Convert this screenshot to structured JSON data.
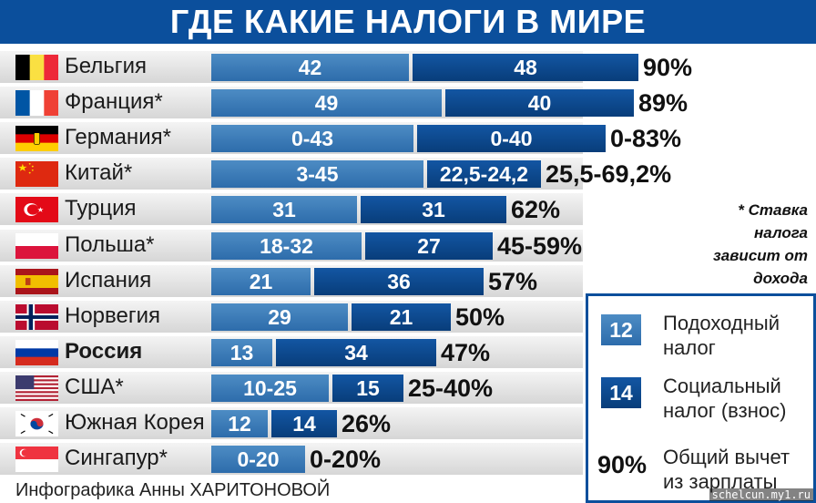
{
  "title": "ГДЕ КАКИЕ НАЛОГИ В МИРЕ",
  "colors": {
    "title_bg": "#0b4f9c",
    "income_tax": "#3a7ab8",
    "social_tax": "#0a4a91"
  },
  "chart_data": {
    "type": "bar",
    "stacked": true,
    "orientation": "horizontal",
    "title": "ГДЕ КАКИЕ НАЛОГИ В МИРЕ",
    "categories": [
      "Бельгия",
      "Франция*",
      "Германия*",
      "Китай*",
      "Турция",
      "Польша*",
      "Испания",
      "Норвегия",
      "Россия",
      "США*",
      "Южная Корея",
      "Сингапур*"
    ],
    "series": [
      {
        "name": "Подоходный налог",
        "color": "#3a7ab8",
        "labels": [
          "42",
          "49",
          "0-43",
          "3-45",
          "31",
          "18-32",
          "21",
          "29",
          "13",
          "10-25",
          "12",
          "0-20"
        ],
        "values": [
          42,
          49,
          43,
          45,
          31,
          32,
          21,
          29,
          13,
          25,
          12,
          20
        ]
      },
      {
        "name": "Социальный налог (взнос)",
        "color": "#0a4a91",
        "labels": [
          "48",
          "40",
          "0-40",
          "22,5-24,2",
          "31",
          "27",
          "36",
          "21",
          "34",
          "15",
          "14",
          ""
        ],
        "values": [
          48,
          40,
          40,
          24.2,
          31,
          27,
          36,
          21,
          34,
          15,
          14,
          0
        ]
      }
    ],
    "totals": [
      "90%",
      "89%",
      "0-83%",
      "25,5-69,2%",
      "62%",
      "45-59%",
      "57%",
      "50%",
      "47%",
      "25-40%",
      "26%",
      "0-20%"
    ],
    "flags": [
      "belgium-flag",
      "france-flag",
      "germany-flag",
      "china-flag",
      "turkey-flag",
      "poland-flag",
      "spain-flag",
      "norway-flag",
      "russia-flag",
      "usa-flag",
      "south-korea-flag",
      "singapore-flag"
    ],
    "highlight": "Россия",
    "legend": "right",
    "grid": false
  },
  "footnote": "* Ставка налога зависит от дохода",
  "legend": {
    "income": {
      "swatch": "12",
      "text": "Подоходный налог"
    },
    "social": {
      "swatch": "14",
      "text": "Социальный налог (взнос)"
    },
    "total": {
      "swatch": "90%",
      "text": "Общий вычет из зарплаты"
    }
  },
  "credit": "Инфографика Анны ХАРИТОНОВОЙ",
  "watermark": "schelcun.my1.ru"
}
